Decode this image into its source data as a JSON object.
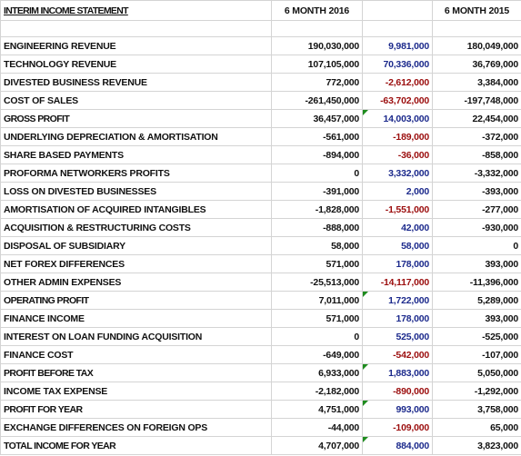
{
  "header": {
    "title": "INTERIM INCOME STATEMENT",
    "col_2016": "6 MONTH 2016",
    "col_2015": "6 MONTH 2015"
  },
  "table": {
    "rows": [
      [
        "ENGINEERING REVENUE",
        "190,030,000",
        "9,981,000",
        "180,049,000"
      ],
      [
        "TECHNOLOGY REVENUE",
        "107,105,000",
        "70,336,000",
        "36,769,000"
      ],
      [
        "DIVESTED BUSINESS REVENUE",
        "772,000",
        "-2,612,000",
        "3,384,000"
      ],
      [
        "COST OF SALES",
        "-261,450,000",
        "-63,702,000",
        "-197,748,000"
      ],
      [
        "GROSS PROFIT",
        "36,457,000",
        "14,003,000",
        "22,454,000"
      ],
      [
        "UNDERLYING DEPRECIATION & AMORTISATION",
        "-561,000",
        "-189,000",
        "-372,000"
      ],
      [
        "SHARE BASED PAYMENTS",
        "-894,000",
        "-36,000",
        "-858,000"
      ],
      [
        "PROFORMA NETWORKERS PROFITS",
        "0",
        "3,332,000",
        "-3,332,000"
      ],
      [
        "LOSS ON DIVESTED BUSINESSES",
        "-391,000",
        "2,000",
        "-393,000"
      ],
      [
        "AMORTISATION OF ACQUIRED INTANGIBLES",
        "-1,828,000",
        "-1,551,000",
        "-277,000"
      ],
      [
        "ACQUISITION & RESTRUCTURING COSTS",
        "-888,000",
        "42,000",
        "-930,000"
      ],
      [
        "DISPOSAL OF SUBSIDIARY",
        "58,000",
        "58,000",
        "0"
      ],
      [
        "NET FOREX DIFFERENCES",
        "571,000",
        "178,000",
        "393,000"
      ],
      [
        "OTHER ADMIN EXPENSES",
        "-25,513,000",
        "-14,117,000",
        "-11,396,000"
      ],
      [
        "OPERATING PROFIT",
        "7,011,000",
        "1,722,000",
        "5,289,000"
      ],
      [
        "FINANCE INCOME",
        "571,000",
        "178,000",
        "393,000"
      ],
      [
        "INTEREST ON LOAN FUNDING ACQUISITION",
        "0",
        "525,000",
        "-525,000"
      ],
      [
        "FINANCE COST",
        "-649,000",
        "-542,000",
        "-107,000"
      ],
      [
        "PROFIT BEFORE TAX",
        "6,933,000",
        "1,883,000",
        "5,050,000"
      ],
      [
        "INCOME TAX EXPENSE",
        "-2,182,000",
        "-890,000",
        "-1,292,000"
      ],
      [
        "PROFIT FOR YEAR",
        "4,751,000",
        "993,000",
        "3,758,000"
      ],
      [
        "EXCHANGE DIFFERENCES ON FOREIGN OPS",
        "-44,000",
        "-109,000",
        "65,000"
      ],
      [
        "TOTAL INCOME FOR YEAR",
        "4,707,000",
        "884,000",
        "3,823,000"
      ]
    ]
  }
}
